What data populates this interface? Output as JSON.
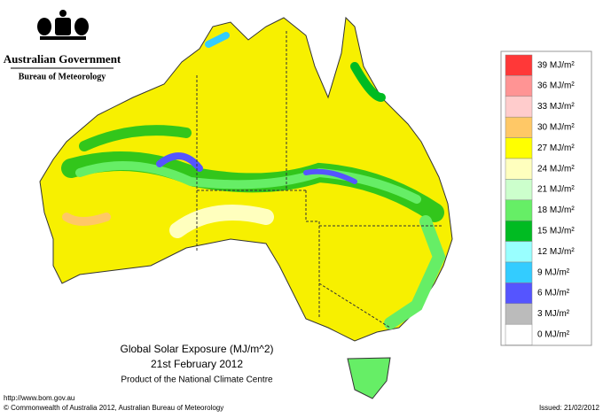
{
  "header": {
    "title": "Australian Government",
    "subtitle": "Bureau of Meteorology"
  },
  "map": {
    "title": "Global Solar Exposure (MJ/m^2)",
    "date": "21st February 2012",
    "product": "Product of the National Climate Centre"
  },
  "legend": [
    {
      "label": "39 MJ/m²",
      "color": "#ff3838"
    },
    {
      "label": "36 MJ/m²",
      "color": "#ff9494"
    },
    {
      "label": "33 MJ/m²",
      "color": "#ffcccc"
    },
    {
      "label": "30 MJ/m²",
      "color": "#ffc866"
    },
    {
      "label": "27 MJ/m²",
      "color": "#ffff00"
    },
    {
      "label": "24 MJ/m²",
      "color": "#ffffbe"
    },
    {
      "label": "21 MJ/m²",
      "color": "#ccffcc"
    },
    {
      "label": "18 MJ/m²",
      "color": "#66ee66"
    },
    {
      "label": "15 MJ/m²",
      "color": "#00bb22"
    },
    {
      "label": "12 MJ/m²",
      "color": "#99ffff"
    },
    {
      "label": "9 MJ/m²",
      "color": "#33ccff"
    },
    {
      "label": "6 MJ/m²",
      "color": "#5555ff"
    },
    {
      "label": "3 MJ/m²",
      "color": "#bbbbbb"
    },
    {
      "label": "0 MJ/m²",
      "color": "#ffffff"
    }
  ],
  "footer": {
    "url": "http://www.bom.gov.au",
    "copyright": "© Commonwealth of Australia 2012, Australian Bureau of Meteorology",
    "issued": "Issued: 21/02/2012"
  }
}
